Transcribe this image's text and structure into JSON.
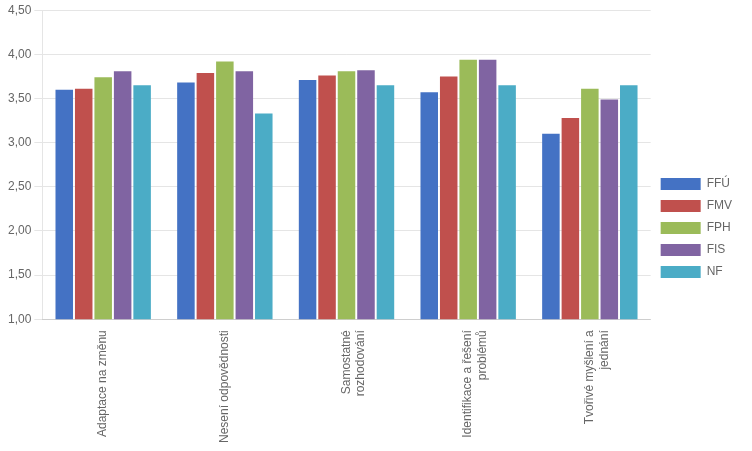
{
  "chart_data": {
    "type": "bar",
    "categories": [
      "Adaptace na změnu",
      "Nesení odpovědnosti",
      "Samostatné\nrozhodování",
      "Identifikace a řešení\nproblémů",
      "Tvořivé myšlení a\njednání"
    ],
    "series": [
      {
        "name": "FFÚ",
        "color": "#4472C4",
        "values": [
          3.6,
          3.68,
          3.71,
          3.57,
          3.1
        ]
      },
      {
        "name": "FMV",
        "color": "#C0504D",
        "values": [
          3.61,
          3.79,
          3.76,
          3.75,
          3.28
        ]
      },
      {
        "name": "FPH",
        "color": "#9BBB59",
        "values": [
          3.74,
          3.92,
          3.81,
          3.94,
          3.61
        ]
      },
      {
        "name": "FIS",
        "color": "#8064A2",
        "values": [
          3.81,
          3.81,
          3.82,
          3.94,
          3.49
        ]
      },
      {
        "name": "NF",
        "color": "#4BACC6",
        "values": [
          3.65,
          3.33,
          3.65,
          3.65,
          3.65
        ]
      }
    ],
    "ylim": [
      1.0,
      4.5
    ],
    "yticks": [
      {
        "value": 1.0,
        "label": "1,00"
      },
      {
        "value": 1.5,
        "label": "1,50"
      },
      {
        "value": 2.0,
        "label": "2,00"
      },
      {
        "value": 2.5,
        "label": "2,50"
      },
      {
        "value": 3.0,
        "label": "3,00"
      },
      {
        "value": 3.5,
        "label": "3,50"
      },
      {
        "value": 4.0,
        "label": "4,00"
      },
      {
        "value": 4.5,
        "label": "4,50"
      }
    ],
    "grid": true,
    "legend": "right"
  }
}
